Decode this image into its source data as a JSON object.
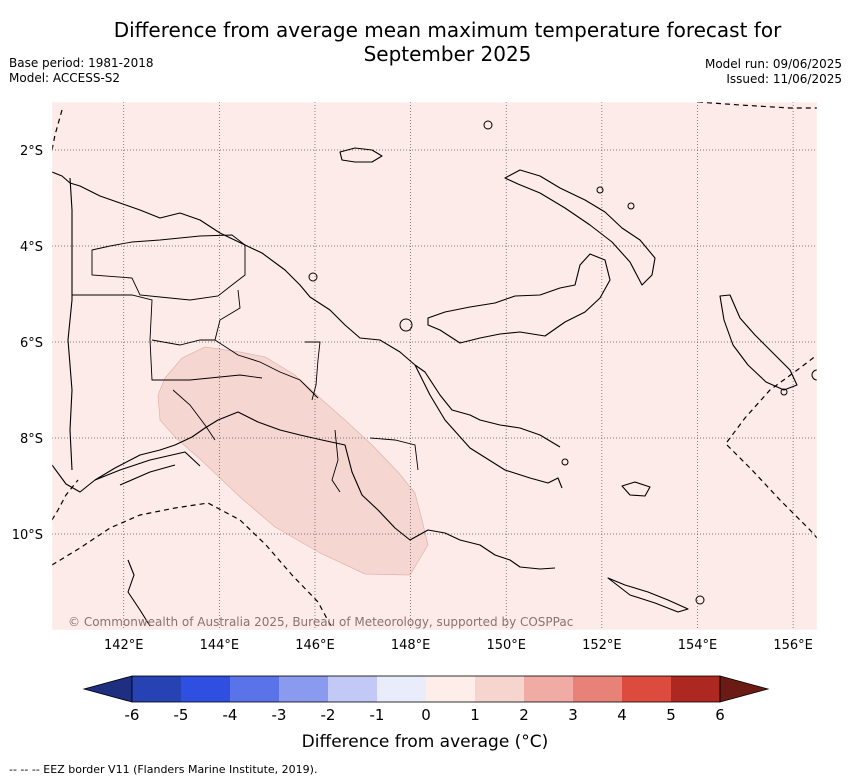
{
  "header": {
    "title_line1": "Difference from average mean maximum temperature forecast for",
    "title_line2": "September 2025",
    "base_period": "Base period: 1981-2018",
    "model": "Model: ACCESS-S2",
    "model_run": "Model run: 09/06/2025",
    "issued": "Issued: 11/06/2025"
  },
  "map": {
    "region": "Papua New Guinea",
    "lon_range": [
      140.5,
      156.5
    ],
    "lat_range": [
      -12,
      -1
    ],
    "lon_ticks": [
      "142°E",
      "144°E",
      "146°E",
      "148°E",
      "150°E",
      "152°E",
      "154°E",
      "156°E"
    ],
    "lat_ticks": [
      "2°S",
      "4°S",
      "6°S",
      "8°S",
      "10°S"
    ],
    "background_anomaly_category": "0 to 1",
    "background_color": "#fcebe8",
    "warm_zone_anomaly_category": "1 to 2",
    "warm_zone_color": "#f5d6d1",
    "coastline_color": "#000000",
    "attribution": "© Commonwealth of Australia 2025, Bureau of Meteorology, supported by COSPPac"
  },
  "colorbar": {
    "tick_labels": [
      "-6",
      "-5",
      "-4",
      "-3",
      "-2",
      "-1",
      "0",
      "1",
      "2",
      "3",
      "4",
      "5",
      "6"
    ],
    "colors": [
      "#2642b3",
      "#2f4fe0",
      "#5b73e8",
      "#8a9aee",
      "#c3c9f6",
      "#e9ecfb",
      "#fdeee9",
      "#f6d5cf",
      "#f0aba4",
      "#e88178",
      "#dd4b3e",
      "#ad2820"
    ],
    "under_color": "#1e2e80",
    "over_color": "#6b1a14",
    "label": "Difference from average (°C)"
  },
  "legend": {
    "eez": "-- -- -- EEZ border V11 (Flanders Marine Institute, 2019)."
  }
}
